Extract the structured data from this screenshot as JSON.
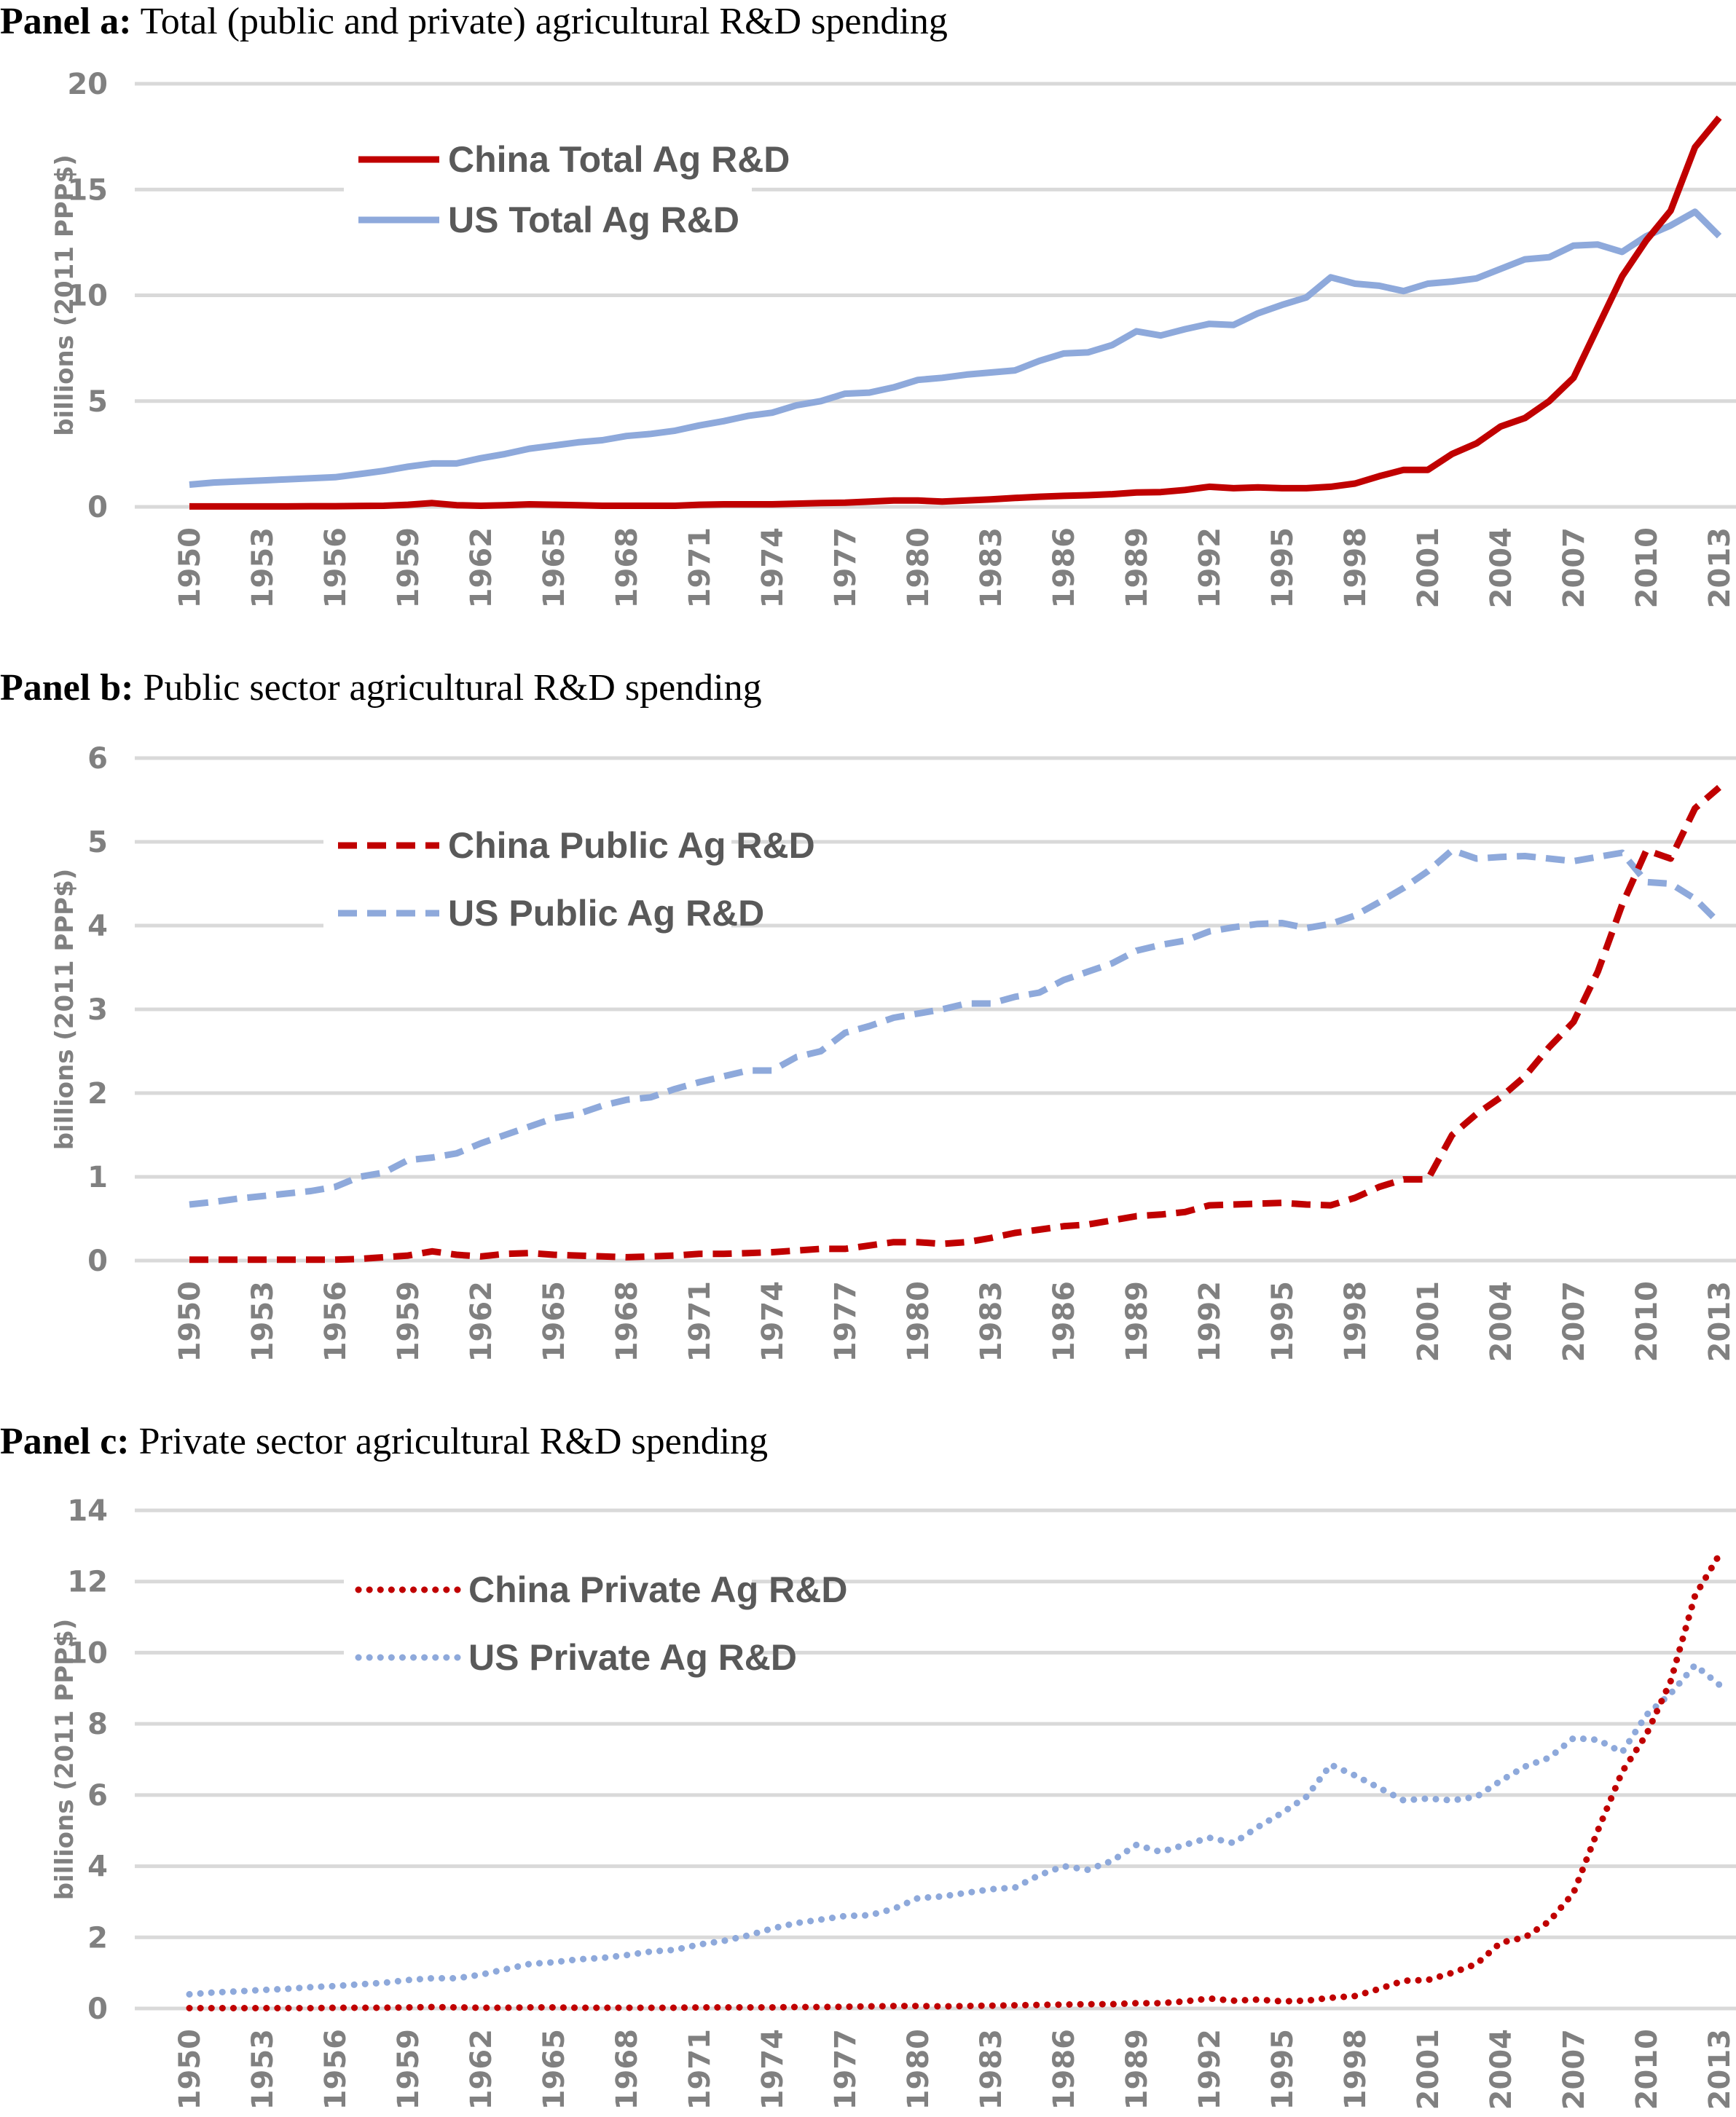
{
  "chart_data": [
    {
      "type": "line",
      "panel_label": "Panel a:",
      "title": "Total (public and private) agricultural R&D spending",
      "ylabel": "billions (2011 PPP$)",
      "xlabel": "",
      "ylim": [
        0,
        20
      ],
      "yticks": [
        0,
        5,
        10,
        15,
        20
      ],
      "grid": true,
      "legend": "top-left",
      "line_style": "solid",
      "series": [
        {
          "name": "China Total Ag R&D",
          "color": "#C00000",
          "values": [
            0.02,
            0.02,
            0.02,
            0.02,
            0.02,
            0.03,
            0.03,
            0.04,
            0.05,
            0.1,
            0.18,
            0.08,
            0.05,
            0.08,
            0.12,
            0.1,
            0.08,
            0.05,
            0.05,
            0.05,
            0.05,
            0.1,
            0.12,
            0.12,
            0.12,
            0.15,
            0.18,
            0.2,
            0.25,
            0.3,
            0.3,
            0.25,
            0.3,
            0.35,
            0.42,
            0.48,
            0.52,
            0.55,
            0.6,
            0.68,
            0.7,
            0.8,
            0.95,
            0.88,
            0.92,
            0.88,
            0.88,
            0.95,
            1.1,
            1.45,
            1.75,
            1.75,
            2.5,
            3.0,
            3.8,
            4.2,
            5.0,
            6.1,
            8.5,
            10.9,
            12.6,
            14.0,
            17.0,
            18.4
          ]
        },
        {
          "name": "US Total Ag R&D",
          "color": "#8EA9DB",
          "values": [
            1.05,
            1.15,
            1.2,
            1.25,
            1.3,
            1.35,
            1.4,
            1.55,
            1.7,
            1.9,
            2.05,
            2.05,
            2.3,
            2.5,
            2.75,
            2.9,
            3.05,
            3.15,
            3.35,
            3.45,
            3.6,
            3.85,
            4.05,
            4.3,
            4.45,
            4.8,
            5.0,
            5.35,
            5.4,
            5.65,
            6.0,
            6.1,
            6.25,
            6.35,
            6.45,
            6.9,
            7.25,
            7.3,
            7.65,
            8.3,
            8.1,
            8.4,
            8.65,
            8.6,
            9.15,
            9.55,
            9.9,
            10.85,
            10.55,
            10.45,
            10.2,
            10.55,
            10.65,
            10.8,
            11.25,
            11.7,
            11.8,
            12.35,
            12.4,
            12.05,
            12.8,
            13.3,
            13.95,
            12.8
          ]
        }
      ]
    },
    {
      "type": "line",
      "panel_label": "Panel b:",
      "title": "Public sector agricultural R&D spending",
      "ylabel": "billions (2011 PPP$)",
      "xlabel": "",
      "ylim": [
        0,
        6
      ],
      "yticks": [
        0,
        1,
        2,
        3,
        4,
        5,
        6
      ],
      "grid": true,
      "legend": "top-left",
      "line_style": "dashed",
      "series": [
        {
          "name": "China Public Ag R&D",
          "color": "#C00000",
          "values": [
            0.01,
            0.01,
            0.01,
            0.01,
            0.01,
            0.01,
            0.01,
            0.02,
            0.04,
            0.06,
            0.11,
            0.07,
            0.05,
            0.08,
            0.09,
            0.07,
            0.06,
            0.05,
            0.04,
            0.05,
            0.06,
            0.08,
            0.08,
            0.09,
            0.1,
            0.12,
            0.14,
            0.14,
            0.18,
            0.22,
            0.22,
            0.2,
            0.22,
            0.27,
            0.33,
            0.37,
            0.41,
            0.43,
            0.48,
            0.53,
            0.55,
            0.58,
            0.66,
            0.67,
            0.68,
            0.69,
            0.67,
            0.66,
            0.75,
            0.88,
            0.97,
            0.97,
            1.5,
            1.75,
            1.95,
            2.2,
            2.55,
            2.85,
            3.45,
            4.25,
            4.9,
            4.8,
            5.4,
            5.65
          ]
        },
        {
          "name": "US Public Ag R&D",
          "color": "#8EA9DB",
          "values": [
            0.67,
            0.7,
            0.74,
            0.77,
            0.8,
            0.83,
            0.88,
            1.0,
            1.05,
            1.2,
            1.23,
            1.28,
            1.4,
            1.5,
            1.6,
            1.7,
            1.75,
            1.85,
            1.92,
            1.95,
            2.05,
            2.13,
            2.2,
            2.27,
            2.27,
            2.43,
            2.5,
            2.72,
            2.8,
            2.9,
            2.95,
            3.0,
            3.07,
            3.07,
            3.15,
            3.2,
            3.35,
            3.45,
            3.55,
            3.7,
            3.77,
            3.82,
            3.93,
            3.98,
            4.02,
            4.03,
            3.97,
            4.02,
            4.12,
            4.28,
            4.45,
            4.65,
            4.9,
            4.8,
            4.82,
            4.83,
            4.8,
            4.77,
            4.82,
            4.87,
            4.52,
            4.5,
            4.32,
            4.03
          ]
        }
      ]
    },
    {
      "type": "line",
      "panel_label": "Panel c:",
      "title": "Private sector agricultural R&D spending",
      "ylabel": "billions (2011 PPP$)",
      "xlabel": "",
      "ylim": [
        0,
        14
      ],
      "yticks": [
        0,
        2,
        4,
        6,
        8,
        10,
        12,
        14
      ],
      "grid": true,
      "legend": "top-left",
      "line_style": "dotted",
      "series": [
        {
          "name": "China Private Ag R&D",
          "color": "#C00000",
          "values": [
            0.01,
            0.01,
            0.01,
            0.01,
            0.01,
            0.01,
            0.02,
            0.02,
            0.02,
            0.03,
            0.04,
            0.03,
            0.02,
            0.02,
            0.03,
            0.03,
            0.02,
            0.02,
            0.02,
            0.02,
            0.02,
            0.03,
            0.03,
            0.03,
            0.03,
            0.04,
            0.04,
            0.05,
            0.06,
            0.07,
            0.07,
            0.06,
            0.07,
            0.08,
            0.09,
            0.1,
            0.11,
            0.12,
            0.12,
            0.15,
            0.15,
            0.2,
            0.28,
            0.22,
            0.25,
            0.2,
            0.22,
            0.3,
            0.35,
            0.55,
            0.78,
            0.8,
            1.0,
            1.25,
            1.85,
            2.0,
            2.45,
            3.25,
            5.0,
            6.65,
            7.7,
            9.2,
            11.6,
            12.75
          ]
        },
        {
          "name": "US Private Ag R&D",
          "color": "#8EA9DB",
          "values": [
            0.4,
            0.45,
            0.48,
            0.52,
            0.55,
            0.6,
            0.63,
            0.68,
            0.72,
            0.8,
            0.85,
            0.85,
            0.95,
            1.1,
            1.25,
            1.3,
            1.38,
            1.42,
            1.5,
            1.6,
            1.65,
            1.8,
            1.9,
            2.05,
            2.25,
            2.4,
            2.5,
            2.6,
            2.62,
            2.8,
            3.1,
            3.15,
            3.25,
            3.35,
            3.4,
            3.75,
            4.0,
            3.9,
            4.15,
            4.6,
            4.4,
            4.6,
            4.8,
            4.65,
            5.1,
            5.5,
            5.95,
            6.85,
            6.55,
            6.2,
            5.85,
            5.9,
            5.85,
            5.95,
            6.4,
            6.8,
            7.05,
            7.6,
            7.55,
            7.2,
            8.25,
            8.85,
            9.65,
            9.1
          ]
        }
      ]
    }
  ],
  "x_years": {
    "start": 1950,
    "end": 2013,
    "label_every": 3
  }
}
